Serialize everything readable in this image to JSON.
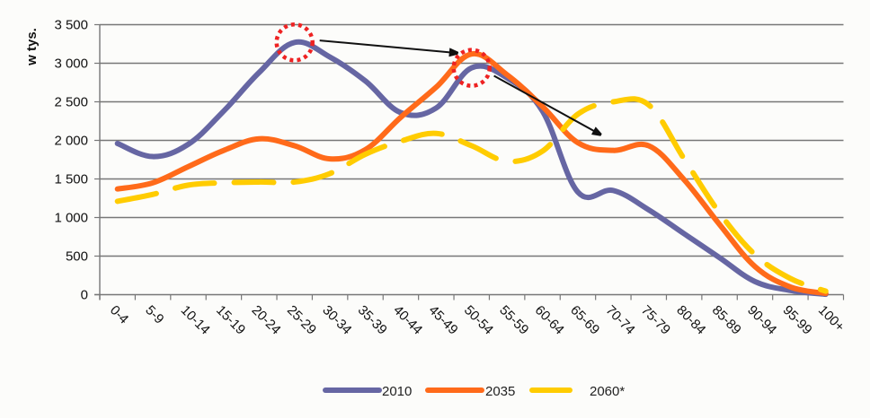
{
  "chart_data": {
    "type": "line",
    "title": "",
    "xlabel": "",
    "ylabel": "w tys.",
    "ylim": [
      0,
      3500
    ],
    "yticks": [
      0,
      500,
      1000,
      1500,
      2000,
      2500,
      3000,
      3500
    ],
    "ytick_labels": [
      "0",
      "500",
      "1 000",
      "1 500",
      "2 000",
      "2 500",
      "3 000",
      "3 500"
    ],
    "grid": true,
    "legend_position": "bottom",
    "categories": [
      "0-4",
      "5-9",
      "10-14",
      "15-19",
      "20-24",
      "25-29",
      "30-34",
      "35-39",
      "40-44",
      "45-49",
      "50-54",
      "55-59",
      "60-64",
      "65-69",
      "70-74",
      "75-79",
      "80-84",
      "85-89",
      "90-94",
      "95-99",
      "100+"
    ],
    "series": [
      {
        "name": "2010",
        "color": "#6666a3",
        "style": "solid",
        "values": [
          1960,
          1790,
          1950,
          2380,
          2880,
          3270,
          3080,
          2770,
          2360,
          2420,
          2940,
          2810,
          2380,
          1330,
          1350,
          1100,
          790,
          480,
          170,
          55,
          5
        ]
      },
      {
        "name": "2035",
        "color": "#ff6a1a",
        "style": "solid",
        "values": [
          1370,
          1450,
          1660,
          1870,
          2020,
          1930,
          1760,
          1880,
          2300,
          2690,
          3120,
          2850,
          2440,
          1970,
          1870,
          1930,
          1490,
          910,
          365,
          100,
          15
        ]
      },
      {
        "name": "2060*",
        "color": "#ffcc00",
        "style": "dashed",
        "values": [
          1210,
          1300,
          1420,
          1450,
          1460,
          1460,
          1570,
          1820,
          1990,
          2090,
          1930,
          1730,
          1860,
          2340,
          2500,
          2460,
          1760,
          1060,
          520,
          210,
          45
        ]
      }
    ],
    "annotations": [
      {
        "type": "highlight-circle",
        "series": "2010",
        "category": "25-29",
        "value": 3270,
        "color": "#ee2222"
      },
      {
        "type": "highlight-circle",
        "series": "2010",
        "category": "50-54",
        "value": 2940,
        "color": "#ee2222"
      },
      {
        "type": "arrow",
        "from_category": "25-29",
        "from_value": 3270,
        "to_category": "50-54",
        "to_value": 3120,
        "color": "#111111"
      },
      {
        "type": "arrow",
        "from_category": "50-54",
        "from_value": 2940,
        "to_category": "70-74",
        "to_value": 1990,
        "color": "#111111"
      }
    ]
  }
}
